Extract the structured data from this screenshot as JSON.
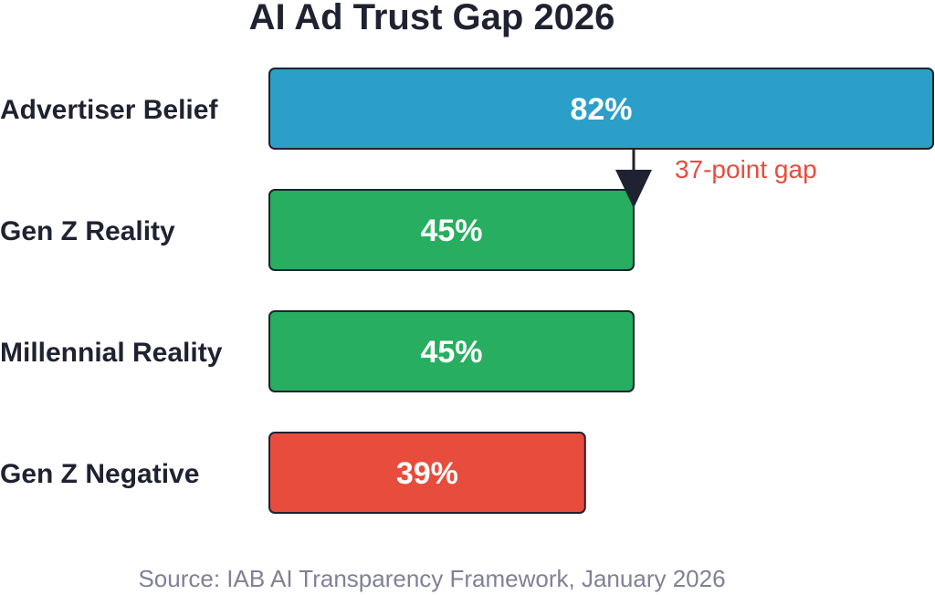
{
  "chart_data": {
    "type": "bar",
    "orientation": "horizontal",
    "title": "AI Ad Trust Gap 2026",
    "categories": [
      "Advertiser Belief",
      "Gen Z Reality",
      "Millennial Reality",
      "Gen Z Negative"
    ],
    "values": [
      82,
      45,
      45,
      39
    ],
    "value_labels": [
      "82%",
      "45%",
      "45%",
      "39%"
    ],
    "colors": [
      "#2b9fc7",
      "#27ae60",
      "#27ae60",
      "#e74c3c"
    ],
    "xlim": [
      0,
      82
    ],
    "grid": false,
    "legend": "none",
    "annotation": {
      "text": "37-point gap",
      "from_category": "Advertiser Belief",
      "to_category": "Gen Z Reality",
      "at_value": 45,
      "color": "#e74c3c"
    },
    "source": "Source: IAB AI Transparency Framework, January 2026"
  }
}
